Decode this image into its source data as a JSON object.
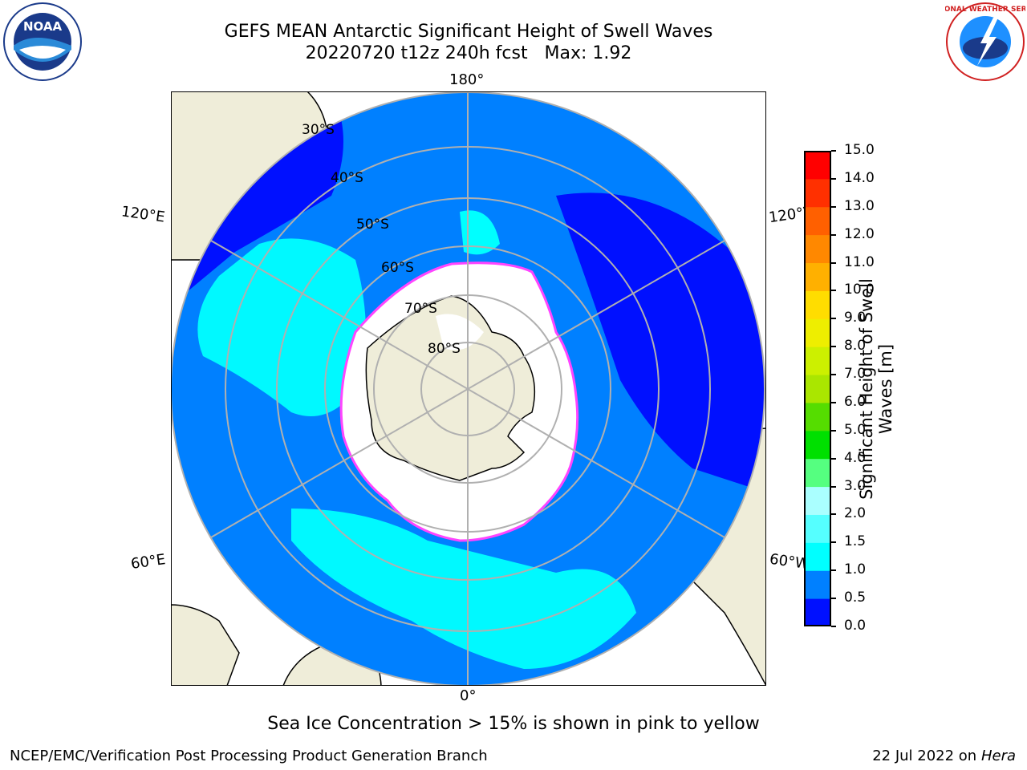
{
  "title": {
    "line1": "GEFS MEAN Antarctic Significant Height of Swell Waves",
    "line2": "20220720 t12z 240h fcst   Max: 1.92"
  },
  "map": {
    "projection": "south-polar-stereographic",
    "longitude_labels": {
      "top": "180°",
      "bottom": "0°",
      "left_upper": "120°E",
      "right_upper": "120°W",
      "left_lower": "60°E",
      "right_lower": "60°W"
    },
    "latitude_labels": [
      "30°S",
      "40°S",
      "50°S",
      "60°S",
      "70°S",
      "80°S"
    ]
  },
  "colorbar": {
    "title": "Significant Height of Swell Waves [m]",
    "ticks": [
      "0.0",
      "0.5",
      "1.0",
      "1.5",
      "2.0",
      "3.0",
      "4.0",
      "5.0",
      "6.0",
      "7.0",
      "8.0",
      "9.0",
      "10.0",
      "11.0",
      "12.0",
      "13.0",
      "14.0",
      "15.0"
    ],
    "colors": [
      "#0010ff",
      "#0080ff",
      "#00ffff",
      "#55ffff",
      "#aaffff",
      "#55ff80",
      "#00e000",
      "#55dd00",
      "#aae600",
      "#ccf000",
      "#eeee00",
      "#ffdd00",
      "#ffb000",
      "#ff8800",
      "#ff6000",
      "#ff3000",
      "#ff0000"
    ]
  },
  "colors": {
    "land": "#efedd9",
    "ocean_low": "#0010ff",
    "ocean_mid": "#0080ff",
    "ocean_high": "#00ffff",
    "ice": "#ffffff",
    "ice_edge": "#ff44ff",
    "grid": "#b0b0b0"
  },
  "icons": {
    "noaa": "noaa-logo-icon",
    "nws": "nws-logo-icon"
  },
  "logos": {
    "noaa_text": "NOAA",
    "nws_text": "NATIONAL WEATHER SERVICE"
  },
  "footer": {
    "note": "Sea Ice Concentration > 15% is shown in pink to yellow",
    "credit": "NCEP/EMC/Verification Post Processing Product Generation Branch",
    "date": "22 Jul 2022 on ",
    "host": "Hera"
  }
}
